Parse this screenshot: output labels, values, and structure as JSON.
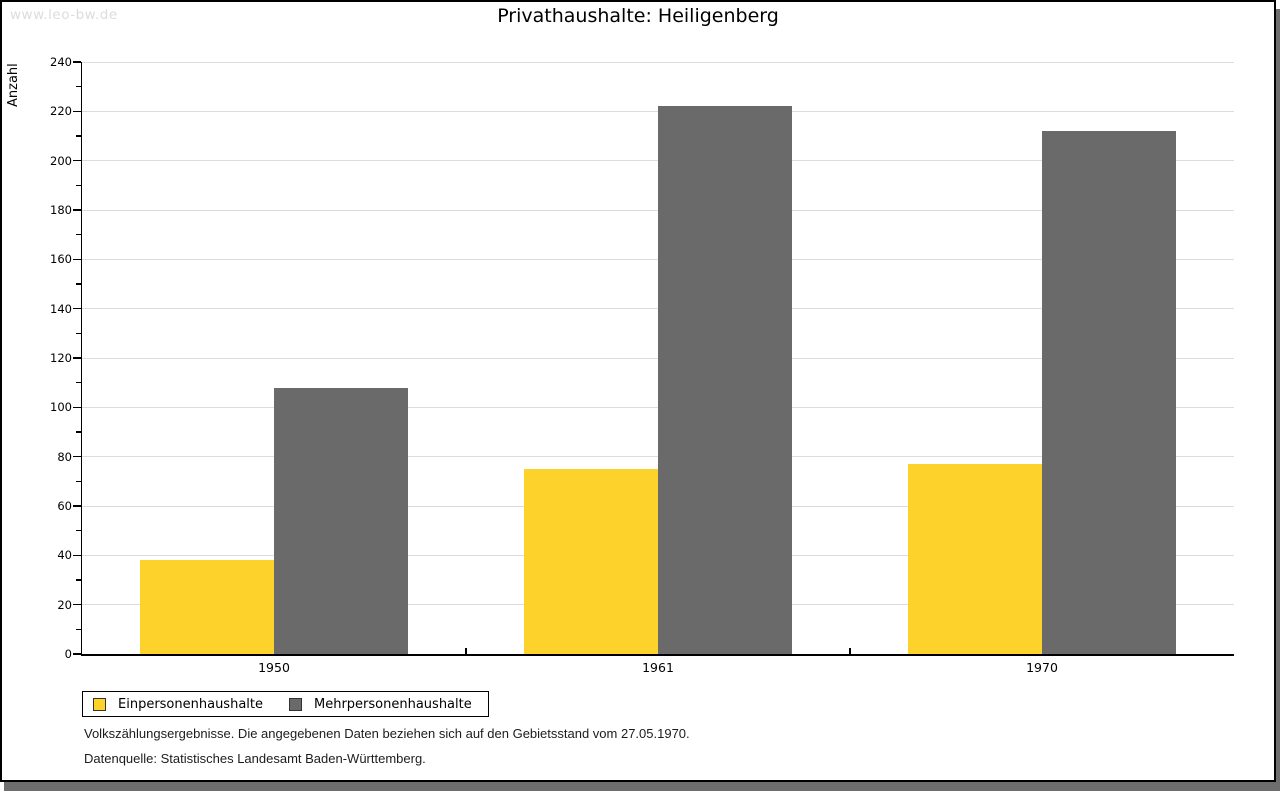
{
  "watermark": "www.leo-bw.de",
  "title": "Privathaushalte: Heiligenberg",
  "chart_data": {
    "type": "bar",
    "title": "Privathaushalte: Heiligenberg",
    "categories": [
      "1950",
      "1961",
      "1970"
    ],
    "series": [
      {
        "name": "Einpersonenhaushalte",
        "color": "#fdd32b",
        "values": [
          38,
          75,
          77
        ]
      },
      {
        "name": "Mehrpersonenhaushalte",
        "color": "#6a6a6a",
        "values": [
          108,
          222,
          212
        ]
      }
    ],
    "xlabel": "",
    "ylabel": "Anzahl",
    "ylim": [
      0,
      240
    ],
    "ytick_step": 20,
    "yminor_step": 10,
    "grid": true,
    "legend_position": "bottom-left"
  },
  "footer": {
    "line1": "Volkszählungsergebnisse. Die angegebenen Daten beziehen sich auf den Gebietsstand vom 27.05.1970.",
    "line2": "Datenquelle: Statistisches Landesamt Baden-Württemberg."
  }
}
